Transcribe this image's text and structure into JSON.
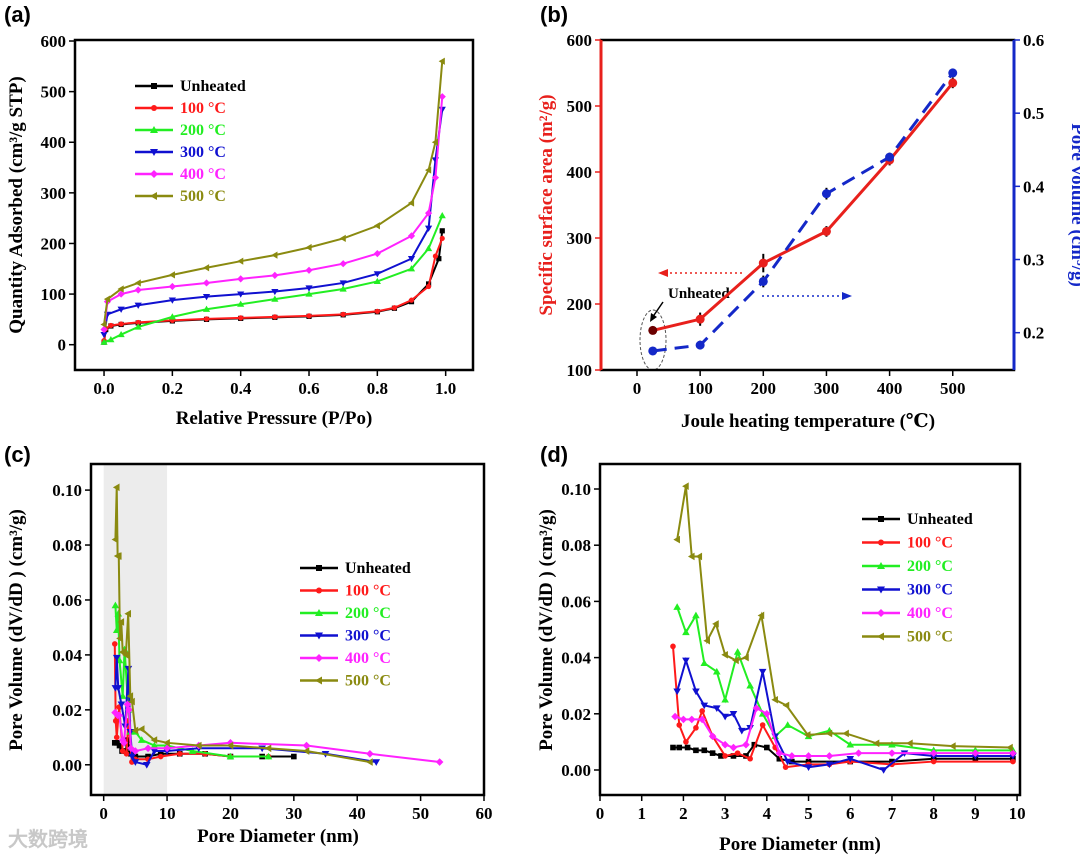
{
  "watermark": "大数跨境",
  "colors": {
    "Unheated": "#000000",
    "100 °C": "#ff1a1a",
    "200 °C": "#22ee22",
    "300 °C": "#1010d0",
    "400 °C": "#ff22ff",
    "500 °C": "#8a8a10"
  },
  "chart_data": [
    {
      "panel": "(a)",
      "type": "line",
      "xlabel": "Relative Pressure (P/Po)",
      "ylabel": "Quantity Adsorbed (cm³/g STP)",
      "xlim": [
        -0.085,
        1.08
      ],
      "ylim": [
        -50,
        602
      ],
      "xticks": [
        0.0,
        0.2,
        0.4,
        0.6,
        0.8,
        1.0
      ],
      "xtick_labels": [
        "0.0",
        "0.2",
        "0.4",
        "0.6",
        "0.8",
        "1.0"
      ],
      "yticks": [
        0,
        100,
        200,
        300,
        400,
        500,
        600
      ],
      "ytick_labels": [
        "0",
        "100",
        "200",
        "300",
        "400",
        "500",
        "600"
      ],
      "legend_position": "top-left",
      "series": [
        {
          "name": "Unheated",
          "marker": "square",
          "x": [
            0,
            0.005,
            0.02,
            0.05,
            0.1,
            0.2,
            0.3,
            0.4,
            0.5,
            0.6,
            0.7,
            0.8,
            0.85,
            0.9,
            0.95,
            0.98,
            0.99
          ],
          "y": [
            5,
            30,
            37,
            40,
            43,
            47,
            50,
            52,
            54,
            56,
            59,
            65,
            72,
            85,
            120,
            170,
            225
          ]
        },
        {
          "name": "100 °C",
          "marker": "circle",
          "x": [
            0,
            0.005,
            0.02,
            0.05,
            0.1,
            0.2,
            0.3,
            0.4,
            0.5,
            0.6,
            0.7,
            0.8,
            0.85,
            0.9,
            0.95,
            0.97,
            0.99
          ],
          "y": [
            8,
            32,
            38,
            41,
            44,
            48,
            51,
            53,
            55,
            57,
            60,
            66,
            73,
            88,
            115,
            175,
            210
          ]
        },
        {
          "name": "200 °C",
          "marker": "triangle-up",
          "x": [
            0,
            0.02,
            0.05,
            0.1,
            0.2,
            0.3,
            0.4,
            0.5,
            0.6,
            0.7,
            0.8,
            0.9,
            0.95,
            0.99
          ],
          "y": [
            5,
            10,
            20,
            35,
            55,
            70,
            80,
            90,
            100,
            110,
            125,
            150,
            190,
            255
          ]
        },
        {
          "name": "300 °C",
          "marker": "triangle-down",
          "x": [
            0,
            0.01,
            0.05,
            0.1,
            0.2,
            0.3,
            0.4,
            0.5,
            0.6,
            0.7,
            0.8,
            0.9,
            0.95,
            0.97,
            0.99
          ],
          "y": [
            20,
            60,
            70,
            78,
            88,
            95,
            100,
            105,
            112,
            122,
            140,
            170,
            230,
            365,
            465
          ]
        },
        {
          "name": "400 °C",
          "marker": "diamond",
          "x": [
            0,
            0.01,
            0.05,
            0.1,
            0.2,
            0.3,
            0.4,
            0.5,
            0.6,
            0.7,
            0.8,
            0.9,
            0.95,
            0.97,
            0.99
          ],
          "y": [
            30,
            85,
            100,
            108,
            115,
            122,
            130,
            137,
            147,
            160,
            180,
            215,
            260,
            330,
            490
          ]
        },
        {
          "name": "500 °C",
          "marker": "triangle-left",
          "x": [
            0,
            0.01,
            0.05,
            0.1,
            0.2,
            0.3,
            0.4,
            0.5,
            0.6,
            0.7,
            0.8,
            0.9,
            0.95,
            0.97,
            0.99
          ],
          "y": [
            40,
            90,
            110,
            122,
            138,
            152,
            165,
            177,
            192,
            210,
            235,
            280,
            345,
            400,
            560
          ]
        }
      ]
    },
    {
      "panel": "(b)",
      "type": "line",
      "xlabel": "Joule heating temperature (℃)",
      "ylabel": "Specific surface area (m²/g)",
      "ylabel_right": "Pore volume (cm³/g)",
      "xlim": [
        -57,
        597
      ],
      "ylim": [
        100,
        600
      ],
      "ylim_right": [
        0.149,
        0.6
      ],
      "xticks": [
        0,
        100,
        200,
        300,
        400,
        500
      ],
      "xtick_labels": [
        "0",
        "100",
        "200",
        "300",
        "400",
        "500"
      ],
      "yticks": [
        100,
        200,
        300,
        400,
        500,
        600
      ],
      "ytick_labels": [
        "100",
        "200",
        "300",
        "400",
        "500",
        "600"
      ],
      "yticks_right": [
        0.2,
        0.3,
        0.4,
        0.5,
        0.6
      ],
      "ytick_labels_right": [
        "0.2",
        "0.3",
        "0.4",
        "0.5",
        "0.6"
      ],
      "annotation": "Unheated",
      "series": [
        {
          "name": "Specific surface area",
          "axis": "left",
          "color": "#e8201c",
          "style": "solid",
          "x": [
            25,
            100,
            200,
            300,
            400,
            500
          ],
          "y": [
            160,
            177,
            262,
            310,
            418,
            535
          ],
          "err": [
            4,
            10,
            14,
            8,
            8,
            8
          ]
        },
        {
          "name": "Pore volume",
          "axis": "right",
          "color": "#1428c8",
          "style": "dashed",
          "x": [
            25,
            100,
            200,
            300,
            400,
            500
          ],
          "y": [
            0.175,
            0.183,
            0.27,
            0.39,
            0.44,
            0.555
          ],
          "err": [
            0.004,
            0.006,
            0.008,
            0.008,
            0.006,
            0.006
          ]
        }
      ]
    },
    {
      "panel": "(c)",
      "type": "line",
      "xlabel": "Pore Diameter (nm)",
      "ylabel": "Pore Volume (dV/dD ) (cm³/g)",
      "xlim": [
        -2,
        60
      ],
      "ylim": [
        -0.011,
        0.1095
      ],
      "xticks": [
        0,
        10,
        20,
        30,
        40,
        50,
        60
      ],
      "xtick_labels": [
        "0",
        "10",
        "20",
        "30",
        "40",
        "50",
        "60"
      ],
      "yticks": [
        0,
        0.02,
        0.04,
        0.06,
        0.08,
        0.1
      ],
      "ytick_labels": [
        "0.00",
        "0.02",
        "0.04",
        "0.06",
        "0.08",
        "0.10"
      ],
      "highlight_region": [
        0,
        10
      ],
      "legend_position": "center-right",
      "series": [
        {
          "name": "Unheated",
          "marker": "square",
          "x": [
            1.75,
            2.1,
            2.5,
            2.9,
            3.5,
            3.7,
            4.3,
            5,
            7,
            9,
            12,
            16,
            20,
            25,
            30
          ],
          "y": [
            0.008,
            0.008,
            0.007,
            0.005,
            0.005,
            0.009,
            0.004,
            0.003,
            0.003,
            0.004,
            0.004,
            0.004,
            0.003,
            0.003,
            0.003
          ]
        },
        {
          "name": "100 °C",
          "marker": "circle",
          "x": [
            1.75,
            1.9,
            2.06,
            2.45,
            3.0,
            3.6,
            3.9,
            4.45,
            5,
            7,
            9,
            12,
            16,
            20,
            26
          ],
          "y": [
            0.044,
            0.016,
            0.01,
            0.021,
            0.005,
            0.004,
            0.016,
            0.001,
            0.002,
            0.002,
            0.003,
            0.004,
            0.004,
            0.003,
            0.003
          ]
        },
        {
          "name": "200 °C",
          "marker": "triangle-up",
          "x": [
            1.85,
            2.06,
            2.3,
            2.5,
            3.0,
            3.3,
            3.9,
            4.2,
            5,
            6,
            8,
            10,
            14,
            20,
            26
          ],
          "y": [
            0.058,
            0.049,
            0.055,
            0.038,
            0.025,
            0.042,
            0.02,
            0.012,
            0.012,
            0.009,
            0.007,
            0.007,
            0.005,
            0.003,
            0.003
          ]
        },
        {
          "name": "300 °C",
          "marker": "triangle-down",
          "x": [
            1.85,
            2.06,
            2.3,
            2.8,
            3.4,
            3.9,
            4.2,
            4.5,
            5,
            6.8,
            8,
            10,
            15,
            25,
            35,
            43
          ],
          "y": [
            0.028,
            0.039,
            0.028,
            0.022,
            0.014,
            0.035,
            0.012,
            0.003,
            0.001,
            0.0,
            0.005,
            0.005,
            0.006,
            0.006,
            0.004,
            0.001
          ]
        },
        {
          "name": "400 °C",
          "marker": "diamond",
          "x": [
            1.8,
            2.2,
            2.45,
            3.0,
            3.2,
            3.75,
            4.0,
            4.3,
            5,
            7,
            10,
            15,
            20,
            32,
            42,
            53
          ],
          "y": [
            0.019,
            0.018,
            0.018,
            0.009,
            0.008,
            0.022,
            0.02,
            0.006,
            0.005,
            0.006,
            0.006,
            0.007,
            0.008,
            0.007,
            0.004,
            0.001
          ]
        },
        {
          "name": "500 °C",
          "marker": "triangle-left",
          "x": [
            1.85,
            2.06,
            2.2,
            2.38,
            2.57,
            2.78,
            3.0,
            3.5,
            3.87,
            4.2,
            4.47,
            5,
            6,
            8,
            10,
            15,
            20,
            26,
            32,
            42
          ],
          "y": [
            0.082,
            0.101,
            0.076,
            0.076,
            0.046,
            0.052,
            0.041,
            0.04,
            0.055,
            0.025,
            0.023,
            0.0125,
            0.013,
            0.009,
            0.008,
            0.007,
            0.007,
            0.006,
            0.005,
            0.001
          ]
        }
      ]
    },
    {
      "panel": "(d)",
      "type": "line",
      "xlabel": "Pore Diameter (nm)",
      "ylabel": "Pore Volume (dV/dD ) (cm³/g)",
      "xlim": [
        0,
        10.07
      ],
      "ylim": [
        -0.0089,
        0.1089
      ],
      "xticks": [
        0,
        1,
        2,
        3,
        4,
        5,
        6,
        7,
        8,
        9,
        10
      ],
      "xtick_labels": [
        "0",
        "1",
        "2",
        "3",
        "4",
        "5",
        "6",
        "7",
        "8",
        "9",
        "10"
      ],
      "yticks": [
        0,
        0.02,
        0.04,
        0.06,
        0.08,
        0.1
      ],
      "ytick_labels": [
        "0.00",
        "0.02",
        "0.04",
        "0.06",
        "0.08",
        "0.10"
      ],
      "legend_position": "top-right",
      "series": [
        {
          "name": "Unheated",
          "marker": "square",
          "x": [
            1.75,
            1.9,
            2.1,
            2.3,
            2.5,
            2.7,
            2.9,
            3.2,
            3.5,
            3.7,
            4.0,
            4.3,
            4.6,
            5,
            6,
            7,
            8,
            9,
            9.9
          ],
          "y": [
            0.008,
            0.008,
            0.008,
            0.007,
            0.007,
            0.006,
            0.005,
            0.005,
            0.005,
            0.009,
            0.008,
            0.004,
            0.003,
            0.003,
            0.003,
            0.003,
            0.004,
            0.004,
            0.004
          ]
        },
        {
          "name": "100 °C",
          "marker": "circle",
          "x": [
            1.75,
            1.9,
            2.06,
            2.3,
            2.45,
            2.7,
            3.0,
            3.3,
            3.6,
            3.9,
            4.2,
            4.45,
            5,
            5.5,
            6,
            7,
            8,
            9.9
          ],
          "y": [
            0.044,
            0.016,
            0.01,
            0.015,
            0.021,
            0.012,
            0.005,
            0.006,
            0.004,
            0.016,
            0.008,
            0.001,
            0.002,
            0.002,
            0.003,
            0.002,
            0.003,
            0.003
          ]
        },
        {
          "name": "200 °C",
          "marker": "triangle-up",
          "x": [
            1.85,
            2.06,
            2.3,
            2.5,
            2.8,
            3.0,
            3.3,
            3.6,
            3.9,
            4.2,
            4.5,
            5.0,
            5.5,
            6.0,
            7,
            8,
            9,
            9.9
          ],
          "y": [
            0.058,
            0.049,
            0.055,
            0.038,
            0.035,
            0.025,
            0.042,
            0.03,
            0.02,
            0.012,
            0.016,
            0.012,
            0.014,
            0.009,
            0.009,
            0.007,
            0.007,
            0.007
          ]
        },
        {
          "name": "300 °C",
          "marker": "triangle-down",
          "x": [
            1.85,
            2.06,
            2.3,
            2.5,
            2.8,
            3.0,
            3.2,
            3.4,
            3.6,
            3.9,
            4.2,
            4.5,
            5.0,
            5.5,
            6.0,
            6.8,
            7.3,
            8,
            9,
            9.9
          ],
          "y": [
            0.028,
            0.039,
            0.028,
            0.023,
            0.022,
            0.019,
            0.02,
            0.014,
            0.015,
            0.035,
            0.012,
            0.003,
            0.001,
            0.002,
            0.004,
            0.0,
            0.006,
            0.005,
            0.005,
            0.005
          ]
        },
        {
          "name": "400 °C",
          "marker": "diamond",
          "x": [
            1.8,
            2.0,
            2.2,
            2.45,
            2.7,
            3.0,
            3.2,
            3.5,
            3.75,
            4.0,
            4.3,
            4.6,
            5,
            5.5,
            6.2,
            7,
            8,
            9,
            9.9
          ],
          "y": [
            0.019,
            0.018,
            0.018,
            0.018,
            0.012,
            0.009,
            0.008,
            0.009,
            0.022,
            0.02,
            0.006,
            0.005,
            0.005,
            0.005,
            0.006,
            0.006,
            0.006,
            0.006,
            0.006
          ]
        },
        {
          "name": "500 °C",
          "marker": "triangle-left",
          "x": [
            1.85,
            2.06,
            2.2,
            2.38,
            2.57,
            2.78,
            3.0,
            3.26,
            3.5,
            3.87,
            4.2,
            4.47,
            4.98,
            5.5,
            5.9,
            6.63,
            7.43,
            8.46,
            9.83
          ],
          "y": [
            0.082,
            0.101,
            0.076,
            0.076,
            0.046,
            0.052,
            0.041,
            0.039,
            0.04,
            0.055,
            0.025,
            0.023,
            0.0125,
            0.013,
            0.013,
            0.0095,
            0.0095,
            0.0085,
            0.008
          ]
        }
      ]
    }
  ]
}
